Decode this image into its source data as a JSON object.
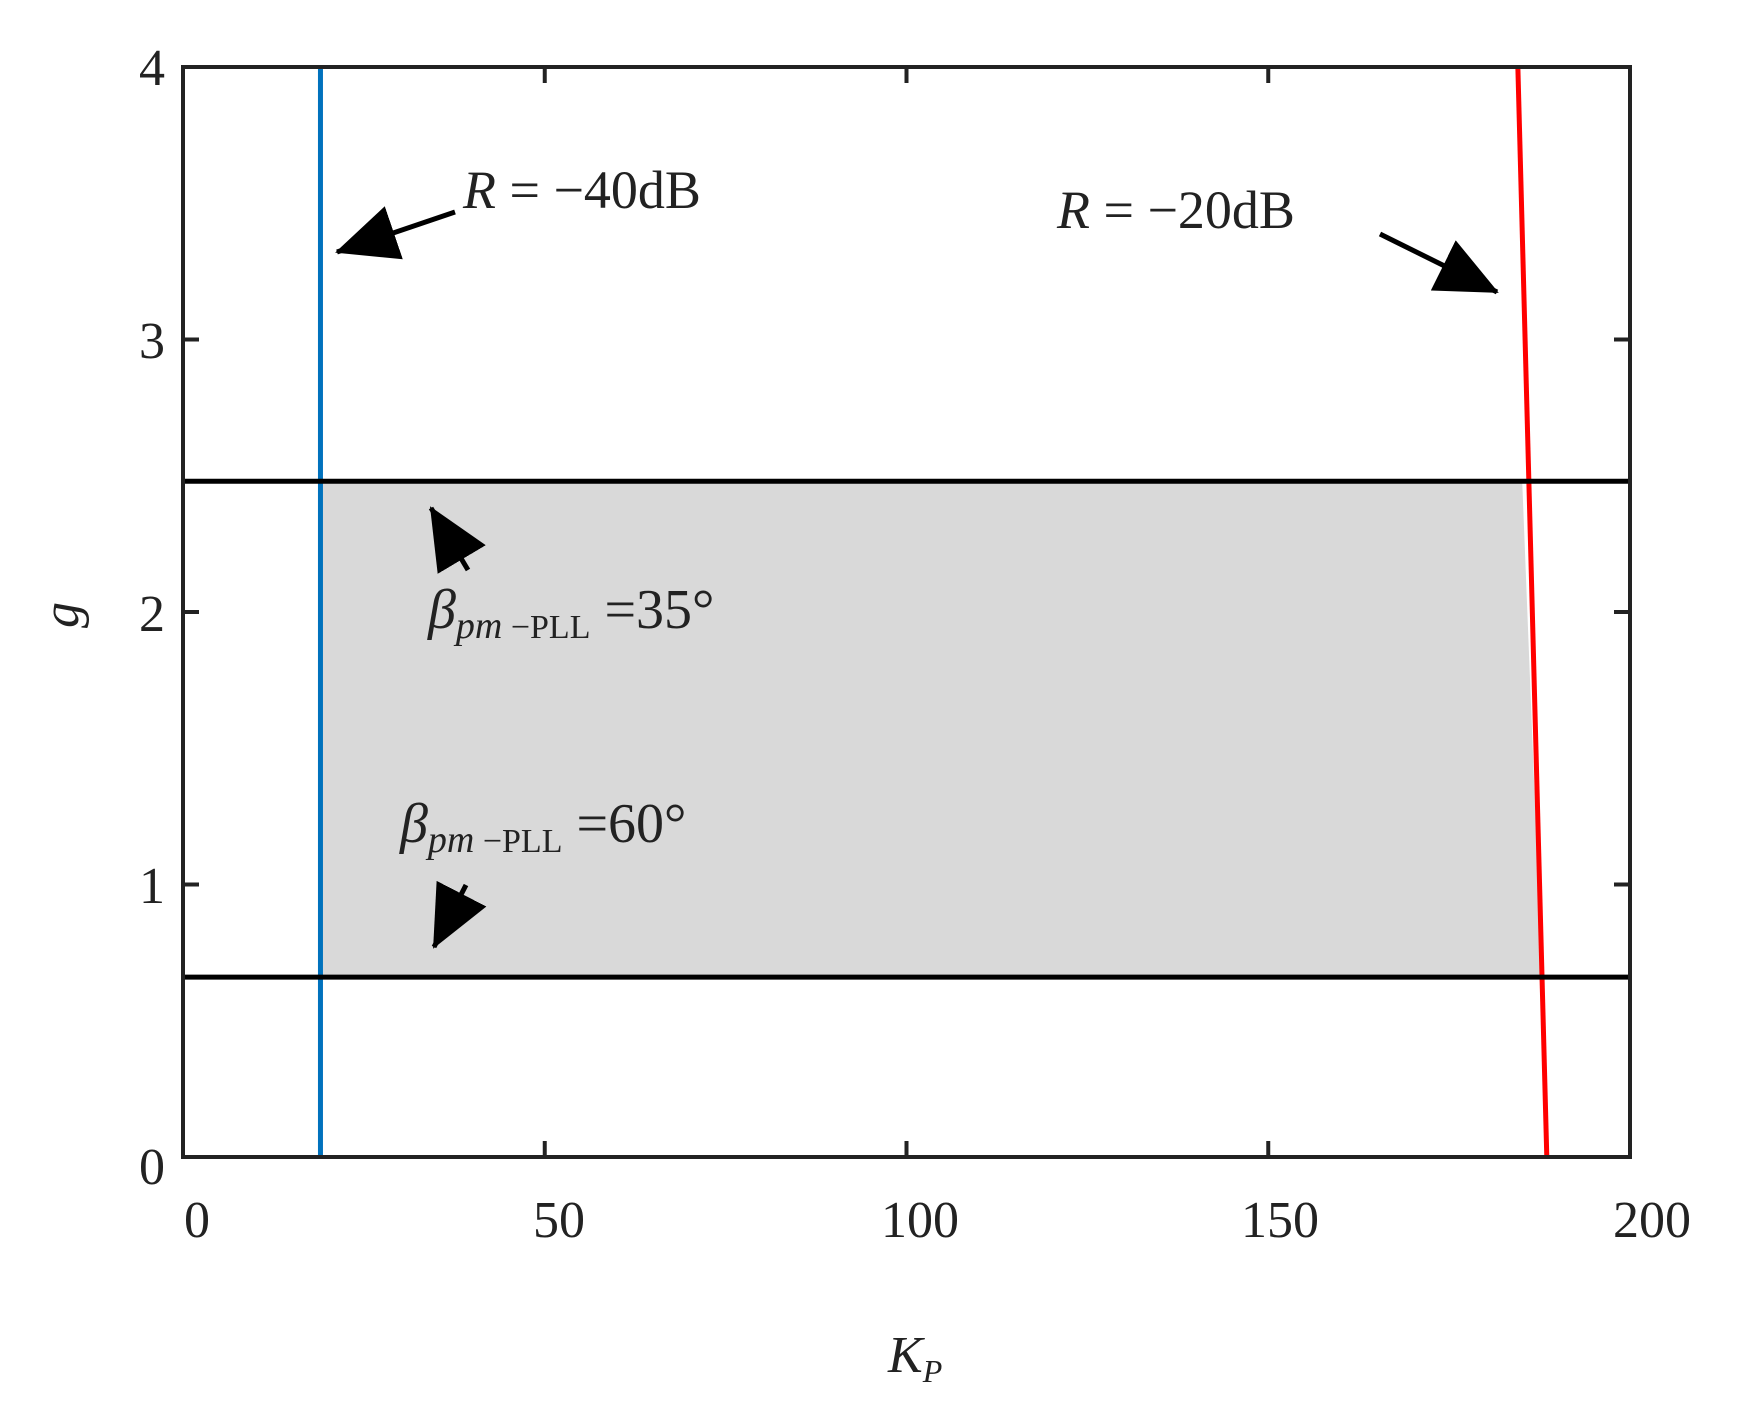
{
  "chart_data": {
    "type": "line",
    "xlabel": "K",
    "xlabel_sub": "P",
    "ylabel": "g",
    "xlim": [
      0,
      200
    ],
    "ylim": [
      0,
      4
    ],
    "xticks": [
      "0",
      "50",
      "100",
      "150",
      "200"
    ],
    "yticks": [
      "0",
      "1",
      "2",
      "3",
      "4"
    ],
    "grid": false,
    "series": [
      {
        "name": "R = −40dB",
        "color": "#0072BD",
        "x": [
          19,
          19
        ],
        "y": [
          0,
          4
        ]
      },
      {
        "name": "R = −20dB",
        "color": "#FF0000",
        "x": [
          188.5,
          184.5
        ],
        "y": [
          0,
          4
        ]
      },
      {
        "name": "βpm−PLL =35°",
        "color": "#000000",
        "x": [
          0,
          200
        ],
        "y": [
          2.48,
          2.48
        ]
      },
      {
        "name": "βpm−PLL =60°",
        "color": "#000000",
        "x": [
          0,
          200
        ],
        "y": [
          0.66,
          0.66
        ]
      }
    ],
    "shaded_region": {
      "color": "#D9D9D9",
      "x_left": 19,
      "x_right_top": 185.1,
      "x_right_bottom": 187.8,
      "y_top": 2.48,
      "y_bottom": 0.66
    },
    "annotations": [
      {
        "id": "r40",
        "prefix": "R",
        "text": " = −40dB",
        "x": 39.5,
        "y": 3.6
      },
      {
        "id": "r20",
        "prefix": "R",
        "text": " = −20dB",
        "x": 121,
        "y": 3.5
      },
      {
        "id": "b35",
        "symbol": "β",
        "sub_italic": "pm",
        "sub_roman": " −PLL",
        "text": " =35°",
        "x": 34,
        "y": 1.93
      },
      {
        "id": "b60",
        "symbol": "β",
        "sub_italic": "pm",
        "sub_roman": " −PLL",
        "text": " =60°",
        "x": 30,
        "y": 1.15
      }
    ]
  }
}
